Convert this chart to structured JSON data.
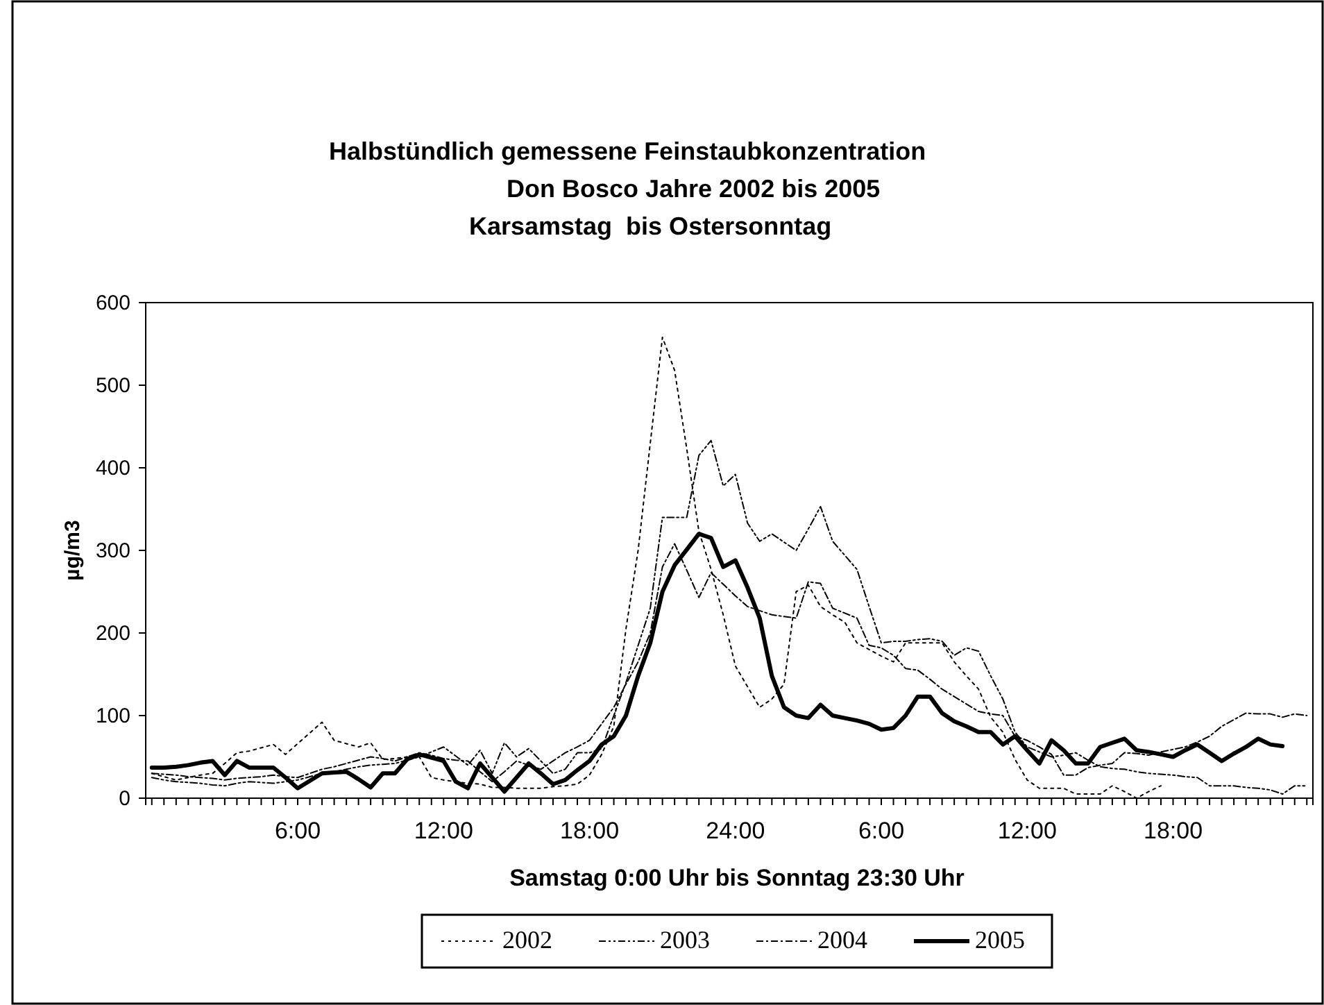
{
  "chart_data": {
    "type": "line",
    "title": "Halbstündlich gemessene Feinstaubkonzentration\nDon Bosco Jahre 2002 bis 2005\nKarsamstag  bis Ostersonntag",
    "xlabel": "Samstag 0:00 Uhr bis Sonntag 23:30 Uhr",
    "ylabel": "µg/m3",
    "categories": [
      null,
      null,
      null,
      null,
      null,
      null,
      null,
      null,
      null,
      null,
      null,
      null,
      "6:00",
      null,
      null,
      null,
      null,
      null,
      null,
      null,
      null,
      null,
      null,
      null,
      "12:00",
      null,
      null,
      null,
      null,
      null,
      null,
      null,
      null,
      null,
      null,
      null,
      "18:00",
      null,
      null,
      null,
      null,
      null,
      null,
      null,
      null,
      null,
      null,
      null,
      "24:00",
      null,
      null,
      null,
      null,
      null,
      null,
      null,
      null,
      null,
      null,
      null,
      "6:00",
      null,
      null,
      null,
      null,
      null,
      null,
      null,
      null,
      null,
      null,
      null,
      "12:00",
      null,
      null,
      null,
      null,
      null,
      null,
      null,
      null,
      null,
      null,
      null,
      "18:00",
      null,
      null,
      null,
      null,
      null,
      null,
      null,
      null,
      null,
      null,
      null
    ],
    "ylim": [
      0,
      600
    ],
    "yticks": [
      0,
      100,
      200,
      300,
      400,
      500,
      600
    ],
    "grid": false,
    "legend": "bottom",
    "marker": "none",
    "series": [
      {
        "name": "2002",
        "color": "#000000",
        "line_style": "dotted",
        "values": [
          30,
          26,
          22,
          25,
          28,
          30,
          42,
          55,
          57,
          61,
          65,
          53,
          66,
          79,
          92,
          70,
          66,
          62,
          67,
          47,
          48,
          50,
          50,
          25,
          22,
          20,
          18,
          17,
          13,
          13,
          12,
          12,
          12,
          14,
          15,
          17,
          28,
          53,
          87,
          205,
          300,
          430,
          558,
          518,
          423,
          323,
          277,
          222,
          160,
          135,
          110,
          120,
          138,
          250,
          258,
          232,
          222,
          213,
          188,
          180,
          172,
          165,
          188,
          188,
          188,
          188,
          165,
          148,
          132,
          98,
          80,
          47,
          22,
          12,
          12,
          12,
          5,
          5,
          5,
          15,
          8,
          0,
          8,
          15,
          null,
          null,
          null,
          null,
          null,
          null,
          null,
          null,
          null,
          null,
          null,
          null
        ]
      },
      {
        "name": "2003",
        "color": "#000000",
        "line_style": "dashed",
        "values": [
          25,
          22,
          20,
          19,
          18,
          16,
          15,
          18,
          20,
          19,
          18,
          20,
          22,
          26,
          30,
          32,
          35,
          38,
          40,
          41,
          42,
          46,
          50,
          56,
          62,
          51,
          40,
          58,
          30,
          67,
          50,
          60,
          45,
          30,
          35,
          55,
          55,
          60,
          100,
          140,
          185,
          230,
          340,
          340,
          340,
          415,
          433,
          378,
          392,
          333,
          311,
          320,
          310,
          300,
          326,
          353,
          311,
          294,
          277,
          232,
          188,
          190,
          190,
          192,
          193,
          190,
          173,
          182,
          178,
          148,
          120,
          80,
          62,
          56,
          50,
          52,
          55,
          46,
          38,
          36,
          35,
          32,
          30,
          29,
          28,
          26,
          25,
          15,
          15,
          15,
          13,
          12,
          10,
          5,
          15,
          15
        ]
      },
      {
        "name": "2004",
        "color": "#000000",
        "line_style": "dashed",
        "values": [
          30,
          29,
          28,
          26,
          25,
          24,
          22,
          24,
          25,
          26,
          28,
          26,
          25,
          30,
          35,
          38,
          42,
          46,
          50,
          48,
          45,
          50,
          55,
          52,
          48,
          46,
          45,
          32,
          20,
          32,
          45,
          40,
          35,
          45,
          55,
          62,
          70,
          90,
          110,
          138,
          165,
          200,
          280,
          308,
          276,
          243,
          273,
          259,
          245,
          232,
          227,
          222,
          220,
          218,
          262,
          260,
          230,
          224,
          218,
          185,
          182,
          173,
          157,
          155,
          144,
          132,
          123,
          114,
          105,
          102,
          100,
          75,
          70,
          62,
          53,
          28,
          28,
          37,
          40,
          42,
          55,
          54,
          52,
          56,
          59,
          62,
          68,
          75,
          87,
          95,
          103,
          102,
          102,
          98,
          102,
          100
        ]
      },
      {
        "name": "2005",
        "color": "#000000",
        "line_style": "solid",
        "values": [
          37,
          37,
          38,
          40,
          43,
          45,
          28,
          45,
          37,
          37,
          37,
          25,
          12,
          21,
          30,
          31,
          32,
          23,
          13,
          30,
          30,
          47,
          53,
          49,
          45,
          20,
          12,
          42,
          25,
          8,
          25,
          42,
          30,
          17,
          22,
          34,
          45,
          65,
          75,
          100,
          148,
          188,
          250,
          282,
          301,
          320,
          315,
          280,
          288,
          255,
          218,
          148,
          110,
          100,
          97,
          113,
          100,
          97,
          94,
          90,
          83,
          85,
          100,
          123,
          123,
          103,
          93,
          87,
          80,
          80,
          65,
          75,
          58,
          42,
          70,
          58,
          42,
          42,
          62,
          67,
          72,
          58,
          56,
          53,
          50,
          58,
          65,
          55,
          45,
          54,
          62,
          72,
          65,
          63,
          null,
          null
        ]
      }
    ]
  }
}
